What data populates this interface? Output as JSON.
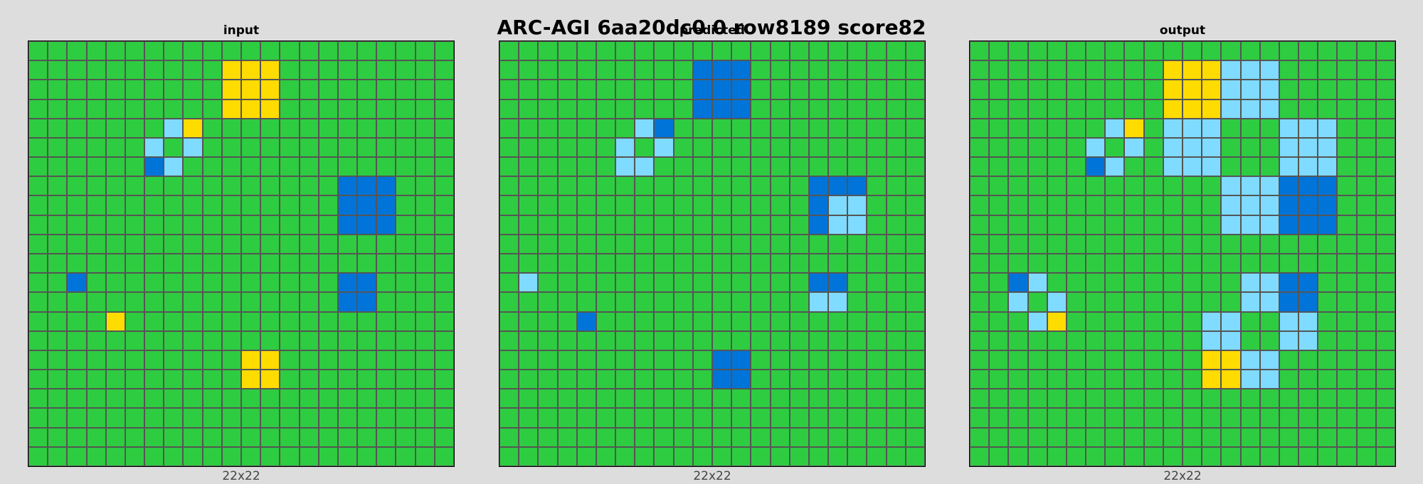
{
  "title": "ARC-AGI 6aa20dc0 0 row8189 score82",
  "palette": {
    "0": "#2ECC40",
    "1": "#FFDC00",
    "2": "#7FDBFF",
    "3": "#0074D9"
  },
  "panels": [
    {
      "label": "input",
      "dims": "22x22",
      "rows": [
        "0000000000000000000000",
        "0000000000111000000000",
        "0000000000111000000000",
        "0000000000111000000000",
        "0000000210000000000000",
        "0000002020000000000000",
        "0000003200000000000000",
        "0000000000000000333000",
        "0000000000000000333000",
        "0000000000000000333000",
        "0000000000000000000000",
        "0000000000000000000000",
        "0030000000000000330000",
        "0000000000000000330000",
        "0000100000000000000000",
        "0000000000000000000000",
        "0000000000011000000000",
        "0000000000011000000000",
        "0000000000000000000000",
        "0000000000000000000000",
        "0000000000000000000000",
        "0000000000000000000000"
      ]
    },
    {
      "label": "predicted",
      "dims": "22x22",
      "rows": [
        "0000000000000000000000",
        "0000000000333000000000",
        "0000000000333000000000",
        "0000000000333000000000",
        "0000000230000000000000",
        "0000002020000000000000",
        "0000002200000000000000",
        "0000000000000000333000",
        "0000000000000000322000",
        "0000000000000000322000",
        "0000000000000000000000",
        "0000000000000000000000",
        "0200000000000000330000",
        "0000000000000000220000",
        "0000300000000000000000",
        "0000000000000000000000",
        "0000000000033000000000",
        "0000000000033000000000",
        "0000000000000000000000",
        "0000000000000000000000",
        "0000000000000000000000",
        "0000000000000000000000"
      ]
    },
    {
      "label": "output",
      "dims": "22x22",
      "rows": [
        "0000000000000000000000",
        "0000000000111222000000",
        "0000000000111222000000",
        "0000000000111222000000",
        "0000000210222000222000",
        "0000002020222000222000",
        "0000003200222000222000",
        "0000000000000222333000",
        "0000000000000222333000",
        "0000000000000222333000",
        "0000000000000000000000",
        "0000000000000000000000",
        "0032000000000022330000",
        "0020200000000022330000",
        "0002100000002200220000",
        "0000000000002200220000",
        "0000000000001122000000",
        "0000000000001122000000",
        "0000000000000000000000",
        "0000000000000000000000",
        "0000000000000000000000",
        "0000000000000000000000"
      ]
    }
  ]
}
